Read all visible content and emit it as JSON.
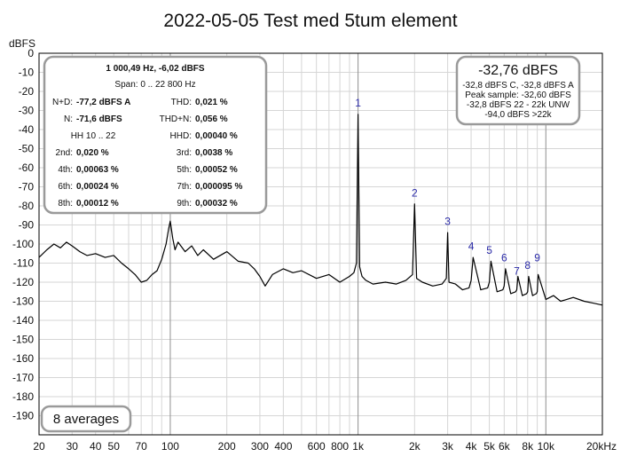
{
  "chart_data": {
    "type": "line",
    "title": "2022-05-05 Test med 5tum element",
    "ylabel": "dBFS",
    "xunit": "kHz",
    "x_scale": "log",
    "xlim": [
      20,
      20000
    ],
    "ylim": [
      -200,
      0
    ],
    "grid": true,
    "x_ticks": [
      {
        "value": 20,
        "label": "20"
      },
      {
        "value": 30,
        "label": "30"
      },
      {
        "value": 40,
        "label": "40"
      },
      {
        "value": 50,
        "label": "50"
      },
      {
        "value": 70,
        "label": "70"
      },
      {
        "value": 100,
        "label": "100"
      },
      {
        "value": 200,
        "label": "200"
      },
      {
        "value": 300,
        "label": "300"
      },
      {
        "value": 400,
        "label": "400"
      },
      {
        "value": 600,
        "label": "600"
      },
      {
        "value": 800,
        "label": "800"
      },
      {
        "value": 1000,
        "label": "1k"
      },
      {
        "value": 2000,
        "label": "2k"
      },
      {
        "value": 3000,
        "label": "3k"
      },
      {
        "value": 4000,
        "label": "4k"
      },
      {
        "value": 5000,
        "label": "5k"
      },
      {
        "value": 6000,
        "label": "6k"
      },
      {
        "value": 8000,
        "label": "8k"
      },
      {
        "value": 10000,
        "label": "10k"
      },
      {
        "value": 20000,
        "label": "20kHz"
      }
    ],
    "y_ticks": [
      0,
      -10,
      -20,
      -30,
      -40,
      -50,
      -60,
      -70,
      -80,
      -90,
      -100,
      -110,
      -120,
      -130,
      -140,
      -150,
      -160,
      -170,
      -180,
      -190
    ],
    "series": [
      {
        "color": "#000000",
        "x": [
          20,
          22,
          24,
          26,
          28,
          30,
          33,
          36,
          40,
          45,
          50,
          55,
          60,
          65,
          70,
          75,
          80,
          85,
          90,
          95,
          98,
          100,
          103,
          106,
          110,
          120,
          130,
          140,
          150,
          170,
          200,
          230,
          260,
          280,
          300,
          320,
          350,
          400,
          450,
          500,
          600,
          700,
          800,
          900,
          950,
          980,
          1000,
          1020,
          1050,
          1100,
          1200,
          1400,
          1600,
          1800,
          1950,
          2000,
          2050,
          2200,
          2500,
          2800,
          2950,
          3000,
          3050,
          3300,
          3600,
          3900,
          4000,
          4100,
          4500,
          4900,
          5000,
          5100,
          5500,
          5900,
          6000,
          6100,
          6500,
          6900,
          7000,
          7100,
          7500,
          7900,
          8000,
          8100,
          8500,
          8900,
          9000,
          9100,
          10000,
          11000,
          12000,
          14000,
          16000,
          18000,
          20000
        ],
        "y": [
          -107,
          -103,
          -100,
          -102,
          -99,
          -101,
          -104,
          -106,
          -105,
          -107,
          -106,
          -110,
          -113,
          -116,
          -120,
          -119,
          -116,
          -114,
          -108,
          -100,
          -92,
          -88,
          -97,
          -103,
          -99,
          -104,
          -101,
          -106,
          -103,
          -108,
          -104,
          -109,
          -110,
          -113,
          -117,
          -122,
          -116,
          -113,
          -115,
          -114,
          -118,
          -116,
          -120,
          -117,
          -115,
          -110,
          -32,
          -112,
          -117,
          -119,
          -121,
          -120,
          -121,
          -119,
          -116,
          -79,
          -118,
          -120,
          -122,
          -121,
          -118,
          -94,
          -120,
          -121,
          -124,
          -123,
          -119,
          -107,
          -124,
          -123,
          -120,
          -109,
          -125,
          -124,
          -122,
          -113,
          -126,
          -125,
          -124,
          -117,
          -127,
          -126,
          -125,
          -117,
          -127,
          -126,
          -125,
          -116,
          -129,
          -127,
          -130,
          -128,
          -130,
          -131,
          -132
        ]
      }
    ],
    "peak_labels": [
      {
        "label": "1",
        "x": 1000,
        "y": -28
      },
      {
        "label": "2",
        "x": 2000,
        "y": -75
      },
      {
        "label": "3",
        "x": 3000,
        "y": -90
      },
      {
        "label": "4",
        "x": 4000,
        "y": -103
      },
      {
        "label": "5",
        "x": 5000,
        "y": -105
      },
      {
        "label": "6",
        "x": 6000,
        "y": -109
      },
      {
        "label": "7",
        "x": 7000,
        "y": -116
      },
      {
        "label": "8",
        "x": 8000,
        "y": -113
      },
      {
        "label": "9",
        "x": 9000,
        "y": -109
      }
    ]
  },
  "stats_box": {
    "line1": "1 000,49 Hz, -6,02 dBFS",
    "line2": "Span: 0 .. 22 800 Hz",
    "rows": [
      {
        "l_label": "N+D:",
        "l_value": "-77,2 dBFS A",
        "r_label": "THD:",
        "r_value": "0,021 %"
      },
      {
        "l_label": "N:",
        "l_value": "-71,6 dBFS",
        "r_label": "THD+N:",
        "r_value": "0,056 %"
      },
      {
        "l_label": "HH 10 .. 22",
        "l_value": "",
        "r_label": "HHD:",
        "r_value": "0,00040 %"
      },
      {
        "l_label": "2nd:",
        "l_value": "0,020 %",
        "r_label": "3rd:",
        "r_value": "0,0038 %"
      },
      {
        "l_label": "4th:",
        "l_value": "0,00063 %",
        "r_label": "5th:",
        "r_value": "0,00052 %"
      },
      {
        "l_label": "6th:",
        "l_value": "0,00024 %",
        "r_label": "7th:",
        "r_value": "0,000095 %"
      },
      {
        "l_label": "8th:",
        "l_value": "0,00012 %",
        "r_label": "9th:",
        "r_value": "0,00032 %"
      }
    ]
  },
  "level_box": {
    "main": "-32,76 dBFS",
    "lines": [
      "-32,8 dBFS C, -32,8 dBFS A",
      "Peak sample: -32,60 dBFS",
      "-32,8 dBFS 22 - 22k UNW",
      "-94,0 dBFS >22k"
    ]
  },
  "averages": "8 averages"
}
